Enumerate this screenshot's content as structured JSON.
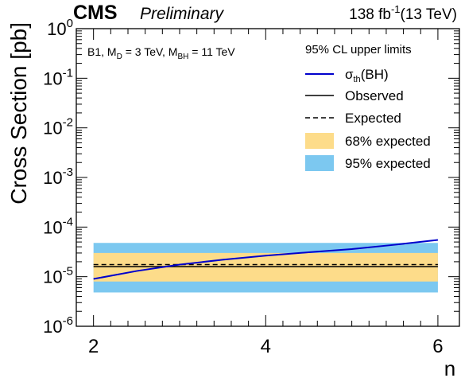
{
  "header": {
    "cms": "CMS",
    "preliminary": "Preliminary",
    "lumi_main": "138 fb",
    "lumi_exp": "-1",
    "lumi_rest": "(13 TeV)"
  },
  "model_label": {
    "b1": "B1, M",
    "d_sub": "D",
    "md_val": " = 3 TeV, M",
    "bh_sub": "BH",
    "mbh_val": " = 11 TeV"
  },
  "legend": {
    "title": "95% CL upper limits",
    "sigma_main": "σ",
    "sigma_sub": "th",
    "sigma_rest": "(BH)",
    "observed": "Observed",
    "expected": "Expected",
    "band68": "68% expected",
    "band95": "95% expected"
  },
  "colors": {
    "theory": "#0000cc",
    "observed": "#000000",
    "expected": "#000000",
    "band68": "#fddc8a",
    "band95": "#7cc8f0"
  },
  "chart_data": {
    "type": "line",
    "ylabel": "Cross Section [pb]",
    "xlabel": "n",
    "xlim": [
      1.8,
      6.25
    ],
    "ylim": [
      1e-06,
      1
    ],
    "yscale": "log",
    "x_ticks": [
      2,
      4,
      6
    ],
    "y_ticks": [
      {
        "value": 1,
        "exp": "0"
      },
      {
        "value": 0.1,
        "exp": "-1"
      },
      {
        "value": 0.01,
        "exp": "-2"
      },
      {
        "value": 0.001,
        "exp": "-3"
      },
      {
        "value": 0.0001,
        "exp": "-4"
      },
      {
        "value": 1e-05,
        "exp": "-5"
      },
      {
        "value": 1e-06,
        "exp": "-6"
      }
    ],
    "y_tick_base": "10",
    "x": [
      2,
      6
    ],
    "series": [
      {
        "name": "σth(BH)",
        "x": [
          2,
          2.5,
          3,
          3.5,
          4,
          4.5,
          5,
          5.5,
          6
        ],
        "values": [
          9e-06,
          1.3e-05,
          1.75e-05,
          2.2e-05,
          2.65e-05,
          3.1e-05,
          3.6e-05,
          4.4e-05,
          5.5e-05
        ]
      },
      {
        "name": "Observed",
        "x": [
          2,
          6
        ],
        "values": [
          1.6e-05,
          1.6e-05
        ]
      },
      {
        "name": "Expected",
        "x": [
          2,
          6
        ],
        "values": [
          1.75e-05,
          1.75e-05
        ]
      }
    ],
    "bands": [
      {
        "name": "95% expected",
        "x": [
          2,
          6
        ],
        "low": [
          4.8e-06,
          4.8e-06
        ],
        "high": [
          4.8e-05,
          4.8e-05
        ]
      },
      {
        "name": "68% expected",
        "x": [
          2,
          6
        ],
        "low": [
          8e-06,
          8e-06
        ],
        "high": [
          3e-05,
          3e-05
        ]
      }
    ]
  }
}
